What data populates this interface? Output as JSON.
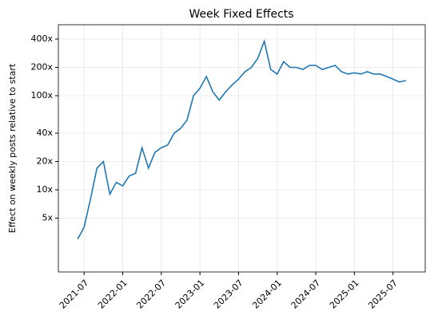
{
  "chart_data": {
    "type": "line",
    "title": "Week Fixed Effects",
    "ylabel": "Effect on weekly posts relative to start",
    "x": [
      "2021-06",
      "2021-07",
      "2021-08",
      "2021-09",
      "2021-10",
      "2021-11",
      "2021-12",
      "2022-01",
      "2022-02",
      "2022-03",
      "2022-04",
      "2022-05",
      "2022-06",
      "2022-07",
      "2022-08",
      "2022-09",
      "2022-10",
      "2022-11",
      "2022-12",
      "2023-01",
      "2023-02",
      "2023-03",
      "2023-04",
      "2023-05",
      "2023-06",
      "2023-07",
      "2023-08",
      "2023-09",
      "2023-10",
      "2023-11",
      "2023-12",
      "2024-01",
      "2024-02",
      "2024-03",
      "2024-04",
      "2024-05",
      "2024-06",
      "2024-07",
      "2024-08",
      "2024-09",
      "2024-10",
      "2024-11",
      "2024-12",
      "2025-01",
      "2025-02",
      "2025-03",
      "2025-04",
      "2025-05",
      "2025-06",
      "2025-07",
      "2025-08",
      "2025-09"
    ],
    "series": [
      {
        "name": "Week fixed effect",
        "color": "#1f77b4",
        "values": [
          3,
          4,
          8,
          17,
          20,
          9,
          12,
          11,
          14,
          15,
          28,
          17,
          25,
          28,
          30,
          40,
          45,
          55,
          100,
          120,
          160,
          110,
          90,
          110,
          130,
          150,
          180,
          200,
          250,
          380,
          190,
          170,
          230,
          200,
          200,
          190,
          210,
          210,
          190,
          200,
          210,
          180,
          170,
          175,
          170,
          180,
          170,
          170,
          160,
          150,
          140,
          145
        ]
      }
    ],
    "xlim": [
      "2021-03",
      "2025-12"
    ],
    "xticks": [
      "2021-07",
      "2022-01",
      "2022-07",
      "2023-01",
      "2023-07",
      "2024-01",
      "2024-07",
      "2025-01",
      "2025-07"
    ],
    "ylim": [
      1.34,
      568
    ],
    "log_y": true,
    "yticks": [
      {
        "value": 5,
        "label": "5x"
      },
      {
        "value": 10,
        "label": "10x"
      },
      {
        "value": 20,
        "label": "20x"
      },
      {
        "value": 40,
        "label": "40x"
      },
      {
        "value": 100,
        "label": "100x"
      },
      {
        "value": 200,
        "label": "200x"
      },
      {
        "value": 400,
        "label": "400x"
      }
    ],
    "grid": true
  }
}
